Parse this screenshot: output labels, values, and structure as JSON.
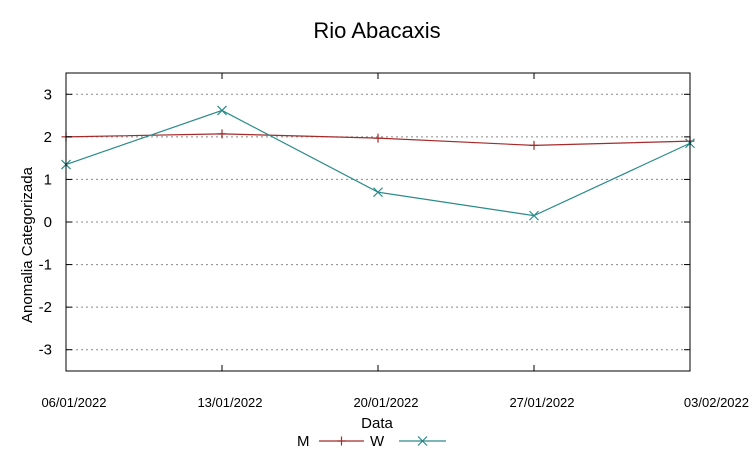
{
  "chart_data": {
    "type": "line",
    "title": "Rio Abacaxis",
    "xlabel": "Data",
    "ylabel": "Anomalia Categorizada",
    "categories": [
      "06/01/2022",
      "13/01/2022",
      "20/01/2022",
      "27/01/2022",
      "03/02/2022"
    ],
    "ylim": [
      -3.5,
      3.5
    ],
    "yticks": [
      3,
      2,
      1,
      0,
      -1,
      -2,
      -3
    ],
    "ytick_labels": [
      "3",
      "2",
      "1",
      "0",
      "-1",
      "-2",
      "-3"
    ],
    "grid": true,
    "legend_position": "bottom-center",
    "series": [
      {
        "name": "M",
        "marker": "plus",
        "color": "#a52a2a",
        "values": [
          2.0,
          2.07,
          1.97,
          1.8,
          1.9
        ]
      },
      {
        "name": "W",
        "marker": "x",
        "color": "#2a8a8a",
        "values": [
          1.35,
          2.62,
          0.7,
          0.15,
          1.85
        ]
      }
    ]
  }
}
